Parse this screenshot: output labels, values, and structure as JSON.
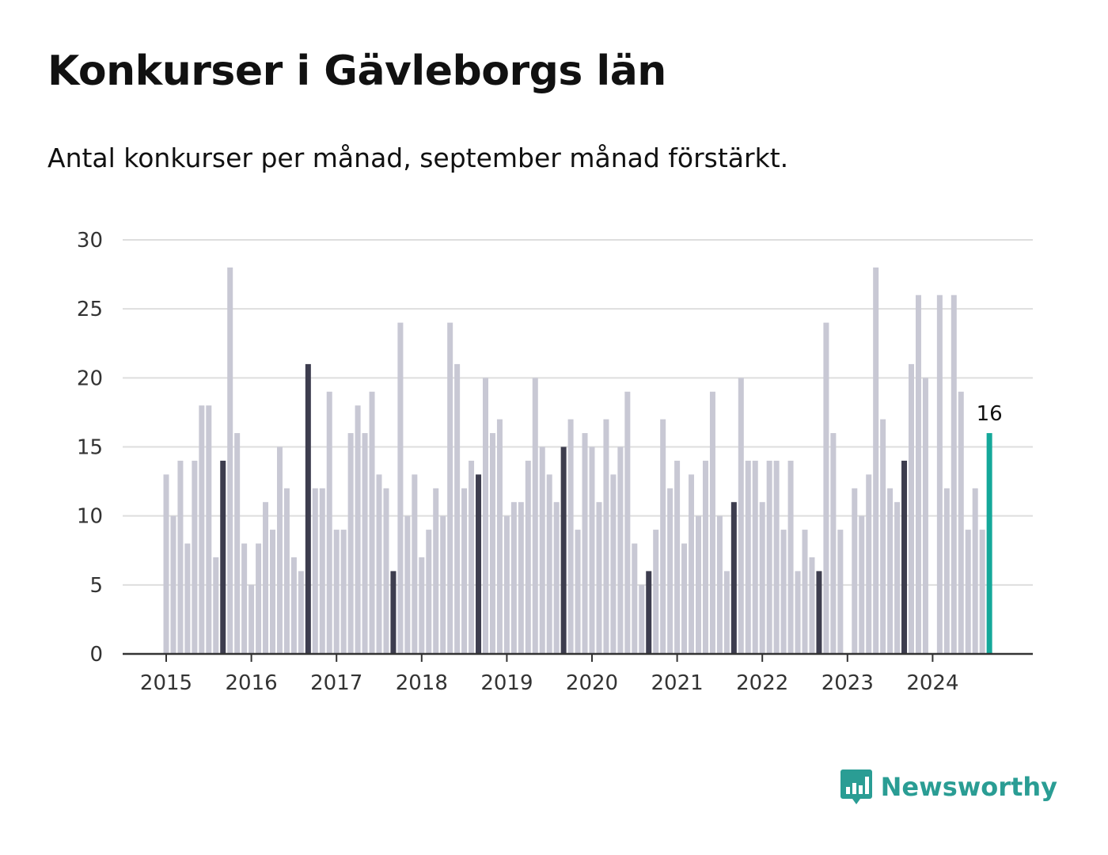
{
  "title": "Konkurser i Gävleborgs län",
  "subtitle": "Antal konkurser per månad, september månad förstärkt.",
  "brand": {
    "name": "Newsworthy",
    "logo_icon": "bar-chart-speech-bubble-icon",
    "color": "#2a9d94"
  },
  "colors": {
    "bar": "#c8c8d4",
    "highlight": "#3d3d4e",
    "latest": "#15a89a",
    "grid": "#dedede",
    "axis": "#333333"
  },
  "chart_data": {
    "type": "bar",
    "start": "2015-01",
    "frequency": "monthly",
    "highlight_month": "September",
    "values": [
      13,
      10,
      14,
      8,
      14,
      18,
      18,
      7,
      14,
      28,
      16,
      8,
      5,
      8,
      11,
      9,
      15,
      12,
      7,
      6,
      21,
      12,
      12,
      19,
      9,
      9,
      16,
      18,
      16,
      19,
      13,
      12,
      6,
      24,
      10,
      13,
      7,
      9,
      12,
      10,
      24,
      21,
      12,
      14,
      13,
      20,
      16,
      17,
      10,
      11,
      11,
      14,
      20,
      15,
      13,
      11,
      15,
      17,
      9,
      16,
      15,
      11,
      17,
      13,
      15,
      19,
      8,
      5,
      6,
      9,
      17,
      12,
      14,
      8,
      13,
      10,
      14,
      19,
      10,
      6,
      11,
      20,
      14,
      14,
      11,
      14,
      14,
      9,
      14,
      6,
      9,
      7,
      6,
      24,
      16,
      9,
      0,
      12,
      10,
      13,
      28,
      17,
      12,
      11,
      14,
      21,
      26,
      20,
      0,
      26,
      12,
      26,
      19,
      9,
      12,
      9,
      16
    ],
    "xticks": [
      "2015",
      "2016",
      "2017",
      "2018",
      "2019",
      "2020",
      "2021",
      "2022",
      "2023",
      "2024"
    ],
    "yticks": [
      0,
      5,
      10,
      15,
      20,
      25,
      30
    ],
    "ylim": [
      0,
      30
    ],
    "annotation": {
      "label": "16",
      "target": "last"
    },
    "grid": true,
    "xlabel": "",
    "ylabel": ""
  }
}
